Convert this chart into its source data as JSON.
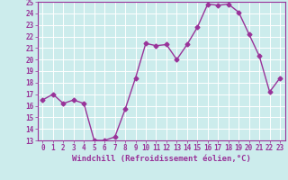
{
  "x": [
    0,
    1,
    2,
    3,
    4,
    5,
    6,
    7,
    8,
    9,
    10,
    11,
    12,
    13,
    14,
    15,
    16,
    17,
    18,
    19,
    20,
    21,
    22,
    23
  ],
  "y": [
    16.5,
    17.0,
    16.2,
    16.5,
    16.2,
    13.0,
    13.0,
    13.3,
    15.7,
    18.4,
    21.4,
    21.2,
    21.3,
    20.0,
    21.3,
    22.8,
    24.8,
    24.7,
    24.8,
    24.1,
    22.2,
    20.3,
    17.2,
    18.4
  ],
  "color": "#993399",
  "bg_color": "#ccecec",
  "grid_color": "#ffffff",
  "xlabel": "Windchill (Refroidissement éolien,°C)",
  "ylim": [
    13,
    25
  ],
  "xlim": [
    -0.5,
    23.5
  ],
  "yticks": [
    13,
    14,
    15,
    16,
    17,
    18,
    19,
    20,
    21,
    22,
    23,
    24,
    25
  ],
  "xticks": [
    0,
    1,
    2,
    3,
    4,
    5,
    6,
    7,
    8,
    9,
    10,
    11,
    12,
    13,
    14,
    15,
    16,
    17,
    18,
    19,
    20,
    21,
    22,
    23
  ],
  "marker": "D",
  "marker_size": 2.5,
  "line_width": 1.0,
  "tick_fontsize": 5.5,
  "xlabel_fontsize": 6.5
}
